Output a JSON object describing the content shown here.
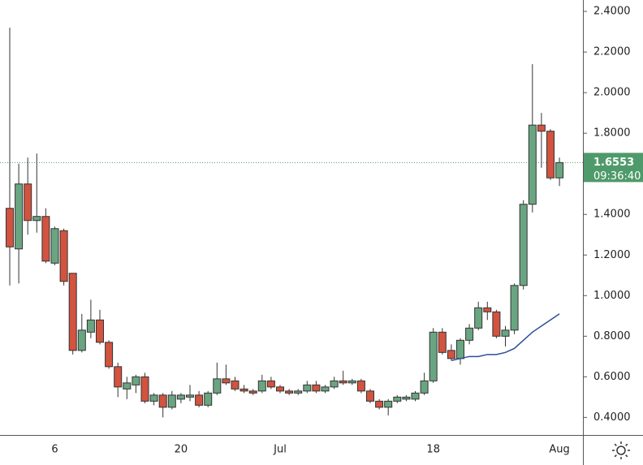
{
  "chart_data": {
    "type": "candlestick",
    "categories": [
      null,
      null,
      null,
      null,
      null,
      "6",
      null,
      null,
      null,
      null,
      null,
      null,
      null,
      null,
      null,
      null,
      null,
      null,
      null,
      "20",
      null,
      null,
      null,
      null,
      null,
      null,
      null,
      null,
      null,
      null,
      "Jul",
      null,
      null,
      null,
      null,
      null,
      null,
      null,
      null,
      null,
      null,
      null,
      null,
      null,
      null,
      null,
      null,
      "18",
      null,
      null,
      null,
      null,
      null,
      null,
      null,
      null,
      null,
      null,
      null,
      null,
      null,
      "Aug"
    ],
    "open": [
      1.43,
      1.23,
      1.55,
      1.37,
      1.39,
      1.16,
      1.32,
      1.11,
      0.73,
      0.82,
      0.88,
      0.77,
      0.65,
      0.54,
      0.56,
      0.6,
      0.48,
      0.51,
      0.45,
      0.49,
      0.5,
      0.51,
      0.46,
      0.52,
      0.59,
      0.58,
      0.54,
      0.53,
      0.53,
      0.58,
      0.55,
      0.53,
      0.52,
      0.53,
      0.56,
      0.53,
      0.55,
      0.58,
      0.57,
      0.58,
      0.53,
      0.48,
      0.45,
      0.48,
      0.49,
      0.49,
      0.52,
      0.58,
      0.82,
      0.73,
      0.69,
      0.78,
      0.84,
      0.94,
      0.92,
      0.8,
      0.83,
      1.05,
      1.45,
      1.84,
      1.81,
      1.58
    ],
    "high": [
      2.32,
      1.65,
      1.68,
      1.7,
      1.43,
      1.34,
      1.33,
      1.11,
      0.91,
      0.98,
      0.93,
      0.78,
      0.67,
      0.6,
      0.61,
      0.62,
      0.52,
      0.52,
      0.53,
      0.52,
      0.56,
      0.53,
      0.53,
      0.67,
      0.66,
      0.6,
      0.56,
      0.54,
      0.61,
      0.6,
      0.56,
      0.54,
      0.54,
      0.58,
      0.58,
      0.56,
      0.6,
      0.63,
      0.59,
      0.59,
      0.54,
      0.49,
      0.49,
      0.51,
      0.51,
      0.53,
      0.62,
      0.84,
      0.84,
      0.76,
      0.79,
      0.86,
      0.97,
      0.97,
      0.93,
      0.85,
      1.06,
      1.47,
      2.14,
      1.9,
      1.82,
      1.68
    ],
    "low": [
      1.05,
      1.06,
      1.3,
      1.31,
      1.16,
      1.15,
      1.05,
      0.71,
      0.72,
      0.79,
      0.76,
      0.64,
      0.5,
      0.49,
      0.52,
      0.47,
      0.46,
      0.4,
      0.44,
      0.47,
      0.48,
      0.45,
      0.45,
      0.51,
      0.56,
      0.53,
      0.52,
      0.51,
      0.52,
      0.54,
      0.52,
      0.51,
      0.51,
      0.52,
      0.52,
      0.52,
      0.54,
      0.56,
      0.56,
      0.52,
      0.47,
      0.44,
      0.41,
      0.47,
      0.48,
      0.48,
      0.51,
      0.57,
      0.71,
      0.68,
      0.66,
      0.76,
      0.83,
      0.88,
      0.79,
      0.75,
      0.81,
      1.03,
      1.41,
      1.63,
      1.57,
      1.54
    ],
    "close": [
      1.24,
      1.55,
      1.37,
      1.39,
      1.17,
      1.33,
      1.07,
      0.73,
      0.83,
      0.88,
      0.77,
      0.65,
      0.55,
      0.57,
      0.6,
      0.48,
      0.51,
      0.45,
      0.51,
      0.51,
      0.51,
      0.46,
      0.52,
      0.59,
      0.57,
      0.54,
      0.53,
      0.52,
      0.58,
      0.55,
      0.53,
      0.52,
      0.53,
      0.56,
      0.53,
      0.55,
      0.58,
      0.57,
      0.58,
      0.53,
      0.48,
      0.45,
      0.48,
      0.5,
      0.5,
      0.52,
      0.58,
      0.82,
      0.72,
      0.69,
      0.78,
      0.84,
      0.94,
      0.92,
      0.8,
      0.83,
      1.05,
      1.45,
      1.84,
      1.81,
      1.58,
      1.6553
    ],
    "up_color": "#6aa581",
    "down_color": "#d2533f",
    "line": {
      "color": "#2b4f9a",
      "values": [
        null,
        null,
        null,
        null,
        null,
        null,
        null,
        null,
        null,
        null,
        null,
        null,
        null,
        null,
        null,
        null,
        null,
        null,
        null,
        null,
        null,
        null,
        null,
        null,
        null,
        null,
        null,
        null,
        null,
        null,
        null,
        null,
        null,
        null,
        null,
        null,
        null,
        null,
        null,
        null,
        null,
        null,
        null,
        null,
        null,
        null,
        null,
        null,
        null,
        0.68,
        0.69,
        0.7,
        0.7,
        0.71,
        0.71,
        0.72,
        0.74,
        0.78,
        0.82,
        0.85,
        0.88,
        0.91
      ]
    },
    "last_price": 1.6553,
    "countdown": "09:36:40",
    "ylim": [
      0.3135,
      2.4563
    ],
    "yticks": [
      {
        "value": 0.4,
        "label": "0.4000"
      },
      {
        "value": 0.6,
        "label": "0.6000"
      },
      {
        "value": 0.8,
        "label": "0.8000"
      },
      {
        "value": 1.0,
        "label": "1.0000"
      },
      {
        "value": 1.2,
        "label": "1.2000"
      },
      {
        "value": 1.4,
        "label": "1.4000"
      },
      {
        "value": 1.6,
        "label": "1.6000"
      },
      {
        "value": 1.8,
        "label": "1.8000"
      },
      {
        "value": 2.0,
        "label": "2.0000"
      },
      {
        "value": 2.2,
        "label": "2.2000"
      },
      {
        "value": 2.4,
        "label": "2.4000"
      }
    ]
  }
}
